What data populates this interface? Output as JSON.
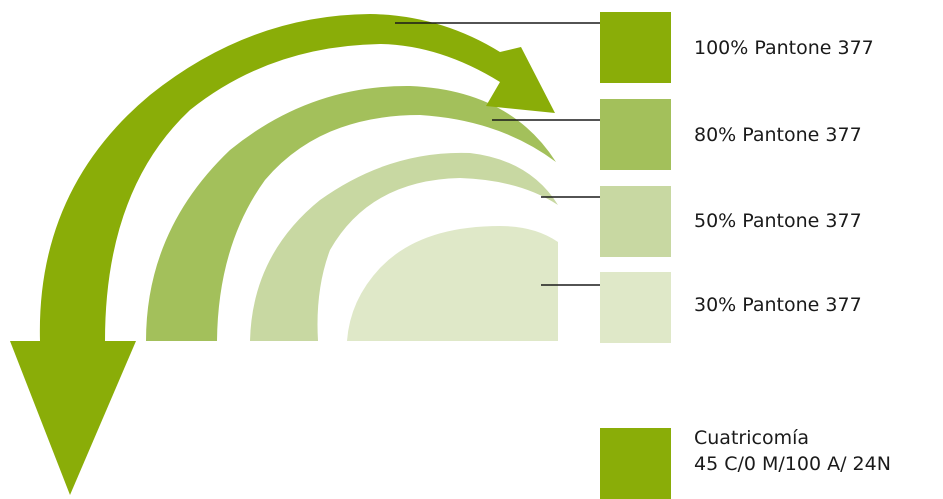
{
  "swatches": [
    {
      "label": "100% Pantone 377",
      "color": "#8aad08"
    },
    {
      "label": "80% Pantone 377",
      "color": "#a3c05b"
    },
    {
      "label": "50% Pantone 377",
      "color": "#c8d8a2"
    },
    {
      "label": "30% Pantone 377",
      "color": "#dfe8c8"
    }
  ],
  "process": {
    "name": "Cuatricomía",
    "formula": "45 C/0 M/100 A/ 24N",
    "color": "#8aad08"
  },
  "leader_color": "#1a1a1a"
}
